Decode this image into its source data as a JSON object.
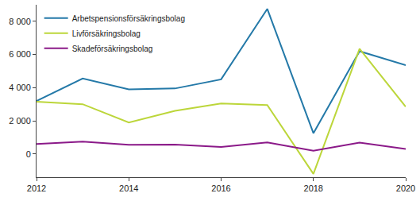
{
  "chart_data": {
    "type": "line",
    "x": [
      2012,
      2013,
      2014,
      2015,
      2016,
      2017,
      2018,
      2019,
      2020
    ],
    "series": [
      {
        "name": "Arbetspensionsförsäkringsbolag",
        "color": "#2479a8",
        "values": [
          3200,
          4550,
          3900,
          3950,
          4500,
          8750,
          1250,
          6200,
          5350
        ]
      },
      {
        "name": "Livförsäkringsbolag",
        "color": "#bcd63a",
        "values": [
          3150,
          3000,
          1900,
          2600,
          3050,
          2950,
          -1200,
          6350,
          2850
        ]
      },
      {
        "name": "Skadeförsäkringsbolag",
        "color": "#8b1a89",
        "values": [
          600,
          750,
          550,
          570,
          420,
          700,
          200,
          680,
          300
        ]
      }
    ],
    "xlim": [
      2012,
      2020
    ],
    "xticks": [
      2012,
      2014,
      2016,
      2018,
      2020
    ],
    "ylim": [
      -1400,
      9000
    ],
    "yticks": [
      0,
      {
        "value": 2000,
        "label": "2 000"
      },
      {
        "value": 4000,
        "label": "4 000"
      },
      {
        "value": 6000,
        "label": "6 000"
      },
      {
        "value": 8000,
        "label": "8 000"
      }
    ],
    "grid": false,
    "legend": "top left"
  }
}
